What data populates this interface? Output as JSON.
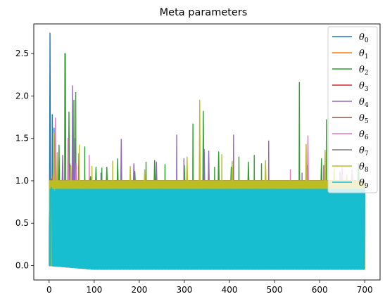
{
  "chart_data": {
    "type": "line",
    "title": "Meta parameters",
    "xlabel": "",
    "ylabel": "",
    "xlim": [
      -34,
      734
    ],
    "ylim": [
      -0.17,
      2.85
    ],
    "x_ticks": [
      0,
      100,
      200,
      300,
      400,
      500,
      600,
      700
    ],
    "y_ticks": [
      0.0,
      0.5,
      1.0,
      1.5,
      2.0,
      2.5
    ],
    "y_tick_labels": [
      "0.0",
      "0.5",
      "1.0",
      "1.5",
      "2.0",
      "2.5"
    ],
    "grid": false,
    "legend_position": "top-right",
    "n_points": 701,
    "x_range": [
      0,
      700
    ],
    "series": [
      {
        "name": "θ0",
        "base": "θ",
        "sub": "0",
        "color": "#1f77b4",
        "start": 0.0,
        "low_end": -0.005,
        "high": 1.0,
        "spikes": [
          [
            2,
            2.74
          ],
          [
            7,
            1.78
          ],
          [
            11,
            1.62
          ]
        ]
      },
      {
        "name": "θ1",
        "base": "θ",
        "sub": "1",
        "color": "#ff7f0e",
        "start": 0.0,
        "low_end": -0.045,
        "high": 1.0,
        "spikes": [
          [
            9,
            1.08
          ]
        ]
      },
      {
        "name": "θ2",
        "base": "θ",
        "sub": "2",
        "color": "#2ca02c",
        "start": 0.0,
        "low_end": -0.04,
        "high": 1.0,
        "spikes": [
          [
            22,
            1.42
          ],
          [
            35,
            2.5
          ],
          [
            36,
            2.5
          ],
          [
            44,
            1.81
          ],
          [
            55,
            1.95
          ],
          [
            59,
            2.04
          ],
          [
            79,
            1.4
          ],
          [
            92,
            1.05
          ],
          [
            104,
            1.16
          ],
          [
            117,
            1.15
          ],
          [
            128,
            1.16
          ],
          [
            152,
            1.26
          ],
          [
            190,
            1.11
          ],
          [
            215,
            1.22
          ],
          [
            234,
            1.24
          ],
          [
            257,
            1.19
          ],
          [
            300,
            1.18
          ],
          [
            319,
            1.67
          ],
          [
            342,
            1.82
          ],
          [
            367,
            1.16
          ],
          [
            376,
            1.34
          ],
          [
            404,
            1.16
          ],
          [
            421,
            1.28
          ],
          [
            442,
            1.22
          ],
          [
            455,
            1.3
          ],
          [
            471,
            1.2
          ],
          [
            555,
            2.16
          ],
          [
            572,
            1.18
          ],
          [
            604,
            1.26
          ],
          [
            615,
            1.72
          ],
          [
            686,
            1.2
          ]
        ]
      },
      {
        "name": "θ3",
        "base": "θ",
        "sub": "3",
        "color": "#d62728",
        "start": 0.0,
        "low_end": -0.045,
        "high": 1.0,
        "spikes": [
          [
            6,
            1.02
          ]
        ]
      },
      {
        "name": "θ4",
        "base": "θ",
        "sub": "4",
        "color": "#9467bd",
        "start": 0.0,
        "low_end": -0.04,
        "high": 1.0,
        "spikes": [
          [
            30,
            1.3
          ],
          [
            46,
            1.2
          ],
          [
            52,
            2.12
          ],
          [
            56,
            1.5
          ],
          [
            66,
            1.32
          ],
          [
            115,
            1.09
          ],
          [
            160,
            1.49
          ],
          [
            188,
            1.2
          ],
          [
            238,
            1.22
          ],
          [
            283,
            1.54
          ],
          [
            299,
            1.26
          ],
          [
            344,
            1.37
          ],
          [
            354,
            1.35
          ],
          [
            409,
            1.54
          ],
          [
            487,
            1.47
          ],
          [
            561,
            1.09
          ],
          [
            609,
            1.18
          ],
          [
            645,
            1.1
          ]
        ]
      },
      {
        "name": "θ5",
        "base": "θ",
        "sub": "5",
        "color": "#8c564b",
        "start": 0.0,
        "low_end": -0.04,
        "high": 1.0,
        "spikes": []
      },
      {
        "name": "θ6",
        "base": "θ",
        "sub": "6",
        "color": "#e377c2",
        "start": 0.0,
        "low_end": -0.04,
        "high": 1.0,
        "spikes": [
          [
            14,
            1.74
          ],
          [
            42,
            1.5
          ],
          [
            60,
            1.2
          ],
          [
            89,
            1.3
          ],
          [
            535,
            1.13
          ],
          [
            574,
            1.53
          ],
          [
            650,
            1.16
          ],
          [
            672,
            1.13
          ]
        ]
      },
      {
        "name": "θ7",
        "base": "θ",
        "sub": "7",
        "color": "#7f7f7f",
        "start": 0.0,
        "low_end": -0.04,
        "high": 1.0,
        "spikes": []
      },
      {
        "name": "θ8",
        "base": "θ",
        "sub": "8",
        "color": "#bcbd22",
        "start": 0.0,
        "low_end": -0.045,
        "high": 1.0,
        "spikes": [
          [
            10,
            1.56
          ],
          [
            18,
            1.33
          ],
          [
            48,
            1.18
          ],
          [
            67,
            1.42
          ],
          [
            95,
            1.17
          ],
          [
            141,
            1.23
          ],
          [
            180,
            1.17
          ],
          [
            212,
            1.13
          ],
          [
            306,
            1.28
          ],
          [
            334,
            1.95
          ],
          [
            383,
            1.31
          ],
          [
            406,
            1.23
          ],
          [
            480,
            1.24
          ],
          [
            570,
            1.43
          ],
          [
            612,
            1.36
          ],
          [
            632,
            1.15
          ],
          [
            660,
            1.07
          ]
        ]
      },
      {
        "name": "θ9",
        "base": "θ",
        "sub": "9",
        "color": "#17becf",
        "start": 0.0,
        "low_end": -0.045,
        "high": 0.9,
        "spikes": [
          [
            5,
            0.92
          ],
          [
            12,
            0.88
          ]
        ]
      }
    ]
  }
}
